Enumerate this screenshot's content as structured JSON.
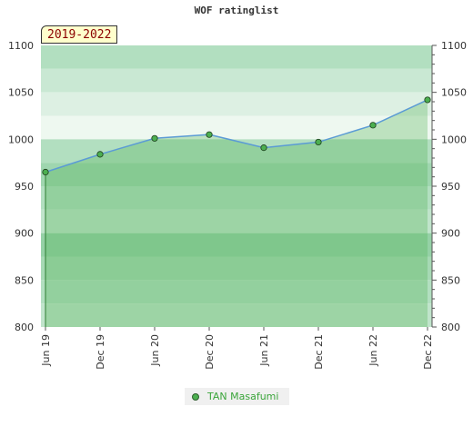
{
  "title": "WOF ratinglist",
  "period_badge": "2019-2022",
  "legend": {
    "label": "TAN Masafumi",
    "color": "#4caf50"
  },
  "chart_data": {
    "type": "area",
    "title": "WOF ratinglist",
    "categories": [
      "Jun 19",
      "Dec 19",
      "Jun 20",
      "Dec 20",
      "Jun 21",
      "Dec 21",
      "Jun 22",
      "Dec 22"
    ],
    "y_ticks": [
      800,
      850,
      900,
      950,
      1000,
      1050,
      1100
    ],
    "ylim": [
      800,
      1100
    ],
    "series": [
      {
        "name": "TAN Masafumi",
        "values": [
          965,
          984,
          1001,
          1005,
          991,
          997,
          1015,
          1042
        ]
      }
    ],
    "bands": [
      {
        "from": 1075,
        "to": 1100,
        "color": "#b2dfc0"
      },
      {
        "from": 1050,
        "to": 1075,
        "color": "#c9e8d3"
      },
      {
        "from": 1025,
        "to": 1050,
        "color": "#ddf0e3"
      },
      {
        "from": 1000,
        "to": 1025,
        "color": "#eef8f0"
      },
      {
        "from": 975,
        "to": 1000,
        "color": "#b2dfc0"
      },
      {
        "from": 950,
        "to": 975,
        "color": "#9fd6af"
      },
      {
        "from": 925,
        "to": 950,
        "color": "#b2dfc0"
      },
      {
        "from": 900,
        "to": 925,
        "color": "#c0e4cb"
      },
      {
        "from": 875,
        "to": 900,
        "color": "#95d1a6"
      },
      {
        "from": 850,
        "to": 875,
        "color": "#a6d9b4"
      },
      {
        "from": 825,
        "to": 850,
        "color": "#b2dfc0"
      },
      {
        "from": 800,
        "to": 825,
        "color": "#c0e4cb"
      }
    ],
    "fill_color": "#4caf50",
    "line_color": "#5b9bd5",
    "marker_color": "#4caf50",
    "grid": false,
    "legend_position": "bottom"
  }
}
